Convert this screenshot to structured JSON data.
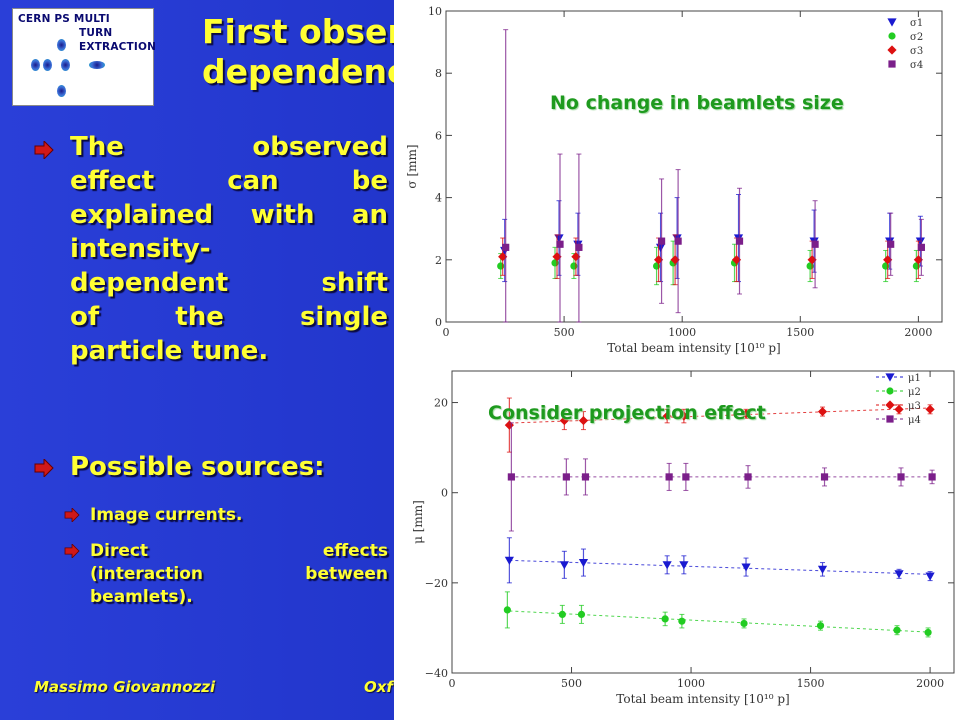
{
  "slide": {
    "title_line1": "First observations: intensity",
    "title_line2": "dependence",
    "bullets": [
      {
        "text_lines": [
          "The observed",
          "effect can be",
          "explained with an",
          "intensity-",
          "dependent shift",
          "of the single",
          "particle tune."
        ]
      },
      {
        "text": "Possible sources:"
      }
    ],
    "sub_bullets": [
      {
        "text": "Image currents."
      },
      {
        "text_lines": [
          "Direct effects",
          "(interaction between",
          "beamlets)."
        ]
      }
    ],
    "footer_left": "Massimo Giovannozzi",
    "footer_mid": "Oxf",
    "colors": {
      "title": "#ffff33",
      "background": "#1f33c8",
      "annotation": "#1e9a1e"
    }
  },
  "logo": {
    "lines": [
      "CERN PS MULTI",
      "TURN",
      "EXTRACTION"
    ]
  },
  "annotations": {
    "top": "No change in beamlets size",
    "bottom": "Consider projection effect"
  },
  "chart_data": [
    {
      "type": "scatter",
      "xlabel": "Total beam intensity [10¹⁰ p]",
      "ylabel": "σ [mm]",
      "xlim": [
        0,
        2100
      ],
      "ylim": [
        0,
        10
      ],
      "x_ticks": [
        0,
        500,
        1000,
        1500,
        2000
      ],
      "y_ticks": [
        0,
        2,
        4,
        6,
        8,
        10
      ],
      "legend_position": "top-right",
      "error_bars": true,
      "x": [
        240,
        470,
        550,
        900,
        970,
        1230,
        1550,
        1870,
        2000
      ],
      "series": [
        {
          "name": "σ1",
          "color": "#1a1ad0",
          "marker": "triangle-down",
          "values": [
            2.3,
            2.7,
            2.5,
            2.4,
            2.7,
            2.7,
            2.6,
            2.6,
            2.6
          ],
          "errors": [
            1.0,
            1.2,
            1.0,
            1.1,
            1.3,
            1.4,
            1.0,
            0.9,
            0.8
          ]
        },
        {
          "name": "σ2",
          "color": "#22cc22",
          "marker": "circle",
          "values": [
            1.8,
            1.9,
            1.8,
            1.8,
            1.9,
            1.9,
            1.8,
            1.8,
            1.8
          ],
          "errors": [
            0.4,
            0.5,
            0.4,
            0.6,
            0.7,
            0.6,
            0.5,
            0.5,
            0.5
          ]
        },
        {
          "name": "σ3",
          "color": "#dd1111",
          "marker": "diamond",
          "values": [
            2.1,
            2.1,
            2.1,
            2.0,
            2.0,
            2.0,
            2.0,
            2.0,
            2.0
          ],
          "errors": [
            0.6,
            0.7,
            0.6,
            0.7,
            0.8,
            0.7,
            0.6,
            0.6,
            0.6
          ]
        },
        {
          "name": "σ4",
          "color": "#7b1f8a",
          "marker": "square",
          "values": [
            2.4,
            2.5,
            2.4,
            2.6,
            2.6,
            2.6,
            2.5,
            2.5,
            2.4
          ],
          "errors": [
            7.0,
            2.9,
            3.0,
            2.0,
            2.3,
            1.7,
            1.4,
            1.0,
            0.9
          ]
        }
      ]
    },
    {
      "type": "scatter",
      "xlabel": "Total beam intensity [10¹⁰ p]",
      "ylabel": "μ [mm]",
      "xlim": [
        0,
        2100
      ],
      "ylim": [
        -40,
        27
      ],
      "x_ticks": [
        0,
        500,
        1000,
        1500,
        2000
      ],
      "y_ticks": [
        -40,
        -20,
        0,
        20
      ],
      "legend_position": "top-right",
      "error_bars": true,
      "fit_lines": true,
      "x": [
        240,
        470,
        550,
        900,
        970,
        1230,
        1550,
        1870,
        2000
      ],
      "series": [
        {
          "name": "μ1",
          "color": "#1a1ad0",
          "marker": "triangle-down",
          "values": [
            -15,
            -16,
            -15.5,
            -16,
            -16,
            -16.5,
            -17,
            -18,
            -18.5
          ],
          "errors": [
            5,
            3,
            3,
            2,
            2,
            2,
            1.5,
            1,
            1
          ]
        },
        {
          "name": "μ2",
          "color": "#22cc22",
          "marker": "circle",
          "values": [
            -26,
            -27,
            -27,
            -28,
            -28.5,
            -29,
            -29.5,
            -30.5,
            -31
          ],
          "errors": [
            4,
            2,
            2,
            1.5,
            1.5,
            1,
            1,
            1,
            1
          ]
        },
        {
          "name": "μ3",
          "color": "#dd1111",
          "marker": "diamond",
          "values": [
            15,
            16,
            16,
            17,
            17,
            17.5,
            18,
            18.5,
            18.5
          ],
          "errors": [
            6,
            2,
            2,
            1.5,
            1.5,
            1,
            1,
            1,
            1
          ]
        },
        {
          "name": "μ4",
          "color": "#7b1f8a",
          "marker": "square",
          "values": [
            3.5,
            3.5,
            3.5,
            3.5,
            3.5,
            3.5,
            3.5,
            3.5,
            3.5
          ],
          "errors": [
            12,
            4,
            4,
            3,
            3,
            2.5,
            2,
            2,
            1.5
          ]
        }
      ]
    }
  ]
}
